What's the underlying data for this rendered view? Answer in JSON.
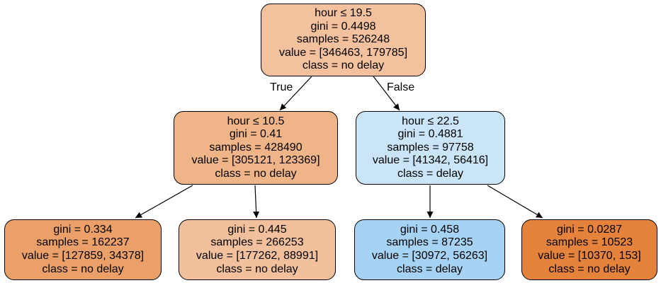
{
  "tree": {
    "nodes": [
      {
        "id": "root",
        "lines": [
          "hour ≤ 19.5",
          "gini = 0.4498",
          "samples = 526248",
          "value = [346463, 179785]",
          "class = no delay"
        ],
        "fill": "#f3c19d"
      },
      {
        "id": "left",
        "lines": [
          "hour ≤ 10.5",
          "gini = 0.41",
          "samples = 428490",
          "value = [305121, 123369]",
          "class = no delay"
        ],
        "fill": "#f0b489"
      },
      {
        "id": "right",
        "lines": [
          "hour ≤ 22.5",
          "gini = 0.4881",
          "samples = 97758",
          "value = [41342, 56416]",
          "class = delay"
        ],
        "fill": "#cae5f8"
      },
      {
        "id": "left-left",
        "lines": [
          "gini = 0.334",
          "samples = 162237",
          "value = [127859, 34378]",
          "class = no delay"
        ],
        "fill": "#eba06a"
      },
      {
        "id": "left-right",
        "lines": [
          "gini = 0.445",
          "samples = 266253",
          "value = [177262, 88991]",
          "class = no delay"
        ],
        "fill": "#f2c09c"
      },
      {
        "id": "right-left",
        "lines": [
          "gini = 0.458",
          "samples = 87235",
          "value = [30972, 56263]",
          "class = delay"
        ],
        "fill": "#a6d3f3"
      },
      {
        "id": "right-right",
        "lines": [
          "gini = 0.0287",
          "samples = 10523",
          "value = [10370, 153]",
          "class = no delay"
        ],
        "fill": "#e5833c"
      }
    ],
    "edge_labels": {
      "true": "True",
      "false": "False"
    }
  }
}
